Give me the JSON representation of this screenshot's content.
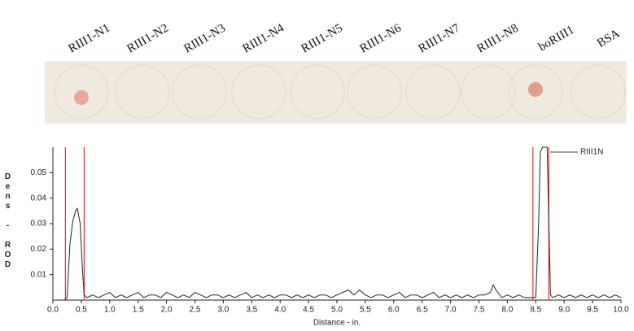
{
  "lanes": [
    "RIII1-N1",
    "RIII1-N2",
    "RIII1-N3",
    "RIII1-N4",
    "RIII1-N5",
    "RIII1-N6",
    "RIII1-N7",
    "RIII1-N8",
    "boRIII1",
    "BSA"
  ],
  "chart_data": {
    "type": "line",
    "xlabel": "Distance - in.",
    "ylabel": "Dens - ROD",
    "annotation": "RIII1N",
    "color": "#222222",
    "marker_color": "#e03030",
    "markers": [
      0.22,
      0.55,
      8.45,
      8.73
    ],
    "xlim": [
      0,
      10
    ],
    "ylim": [
      0,
      0.06
    ],
    "xticks": [
      {
        "value": 0,
        "label": "0.0"
      },
      {
        "value": 0.5,
        "label": "0.5"
      },
      {
        "value": 1,
        "label": "1.0"
      },
      {
        "value": 1.5,
        "label": "1.5"
      },
      {
        "value": 2,
        "label": "2.0"
      },
      {
        "value": 2.5,
        "label": "2.5"
      },
      {
        "value": 3,
        "label": "3.0"
      },
      {
        "value": 3.5,
        "label": "3.5"
      },
      {
        "value": 4,
        "label": "4.0"
      },
      {
        "value": 4.5,
        "label": "4.5"
      },
      {
        "value": 5,
        "label": "5.0"
      },
      {
        "value": 5.5,
        "label": "5.5"
      },
      {
        "value": 6,
        "label": "6.0"
      },
      {
        "value": 6.5,
        "label": "6.5"
      },
      {
        "value": 7,
        "label": "7.0"
      },
      {
        "value": 7.5,
        "label": "7.5"
      },
      {
        "value": 8,
        "label": "8.0"
      },
      {
        "value": 8.5,
        "label": "8.5"
      },
      {
        "value": 9,
        "label": "9.0"
      },
      {
        "value": 9.5,
        "label": "9.5"
      },
      {
        "value": 10,
        "label": "10.0"
      }
    ],
    "yticks": [
      0.01,
      0.02,
      0.03,
      0.04,
      0.05
    ],
    "x": [
      0.0,
      0.1,
      0.2,
      0.25,
      0.3,
      0.35,
      0.4,
      0.43,
      0.48,
      0.52,
      0.55,
      0.6,
      0.7,
      0.8,
      0.9,
      1.0,
      1.1,
      1.2,
      1.3,
      1.4,
      1.5,
      1.6,
      1.7,
      1.8,
      1.9,
      2.0,
      2.1,
      2.2,
      2.3,
      2.4,
      2.5,
      2.6,
      2.7,
      2.8,
      2.9,
      3.0,
      3.1,
      3.2,
      3.3,
      3.4,
      3.5,
      3.6,
      3.7,
      3.8,
      3.9,
      4.0,
      4.1,
      4.2,
      4.3,
      4.4,
      4.5,
      4.6,
      4.7,
      4.8,
      4.9,
      5.0,
      5.1,
      5.2,
      5.3,
      5.4,
      5.5,
      5.6,
      5.7,
      5.8,
      5.9,
      6.0,
      6.1,
      6.2,
      6.3,
      6.4,
      6.5,
      6.6,
      6.7,
      6.8,
      6.9,
      7.0,
      7.1,
      7.2,
      7.3,
      7.4,
      7.5,
      7.6,
      7.7,
      7.75,
      7.8,
      7.9,
      8.0,
      8.1,
      8.2,
      8.3,
      8.4,
      8.5,
      8.55,
      8.58,
      8.62,
      8.7,
      8.73,
      8.76,
      8.8,
      8.9,
      9.0,
      9.1,
      9.2,
      9.3,
      9.4,
      9.5,
      9.6,
      9.7,
      9.8,
      9.9,
      10.0
    ],
    "values": [
      0.0,
      0.0,
      0.0,
      0.001,
      0.022,
      0.031,
      0.035,
      0.036,
      0.03,
      0.012,
      0.002,
      0.001,
      0.002,
      0.001,
      0.002,
      0.003,
      0.001,
      0.002,
      0.001,
      0.002,
      0.003,
      0.001,
      0.002,
      0.002,
      0.001,
      0.003,
      0.002,
      0.001,
      0.002,
      0.001,
      0.003,
      0.002,
      0.001,
      0.002,
      0.002,
      0.001,
      0.002,
      0.001,
      0.002,
      0.003,
      0.001,
      0.002,
      0.001,
      0.002,
      0.001,
      0.002,
      0.002,
      0.001,
      0.002,
      0.001,
      0.002,
      0.001,
      0.002,
      0.002,
      0.001,
      0.002,
      0.003,
      0.004,
      0.002,
      0.004,
      0.002,
      0.001,
      0.002,
      0.002,
      0.001,
      0.002,
      0.003,
      0.001,
      0.002,
      0.002,
      0.001,
      0.002,
      0.003,
      0.001,
      0.002,
      0.001,
      0.002,
      0.001,
      0.002,
      0.001,
      0.002,
      0.002,
      0.003,
      0.006,
      0.004,
      0.001,
      0.002,
      0.001,
      0.002,
      0.001,
      0.001,
      0.001,
      0.03,
      0.058,
      0.06,
      0.06,
      0.03,
      0.002,
      0.001,
      0.002,
      0.001,
      0.002,
      0.001,
      0.002,
      0.001,
      0.002,
      0.001,
      0.002,
      0.001,
      0.002,
      0.001
    ]
  }
}
